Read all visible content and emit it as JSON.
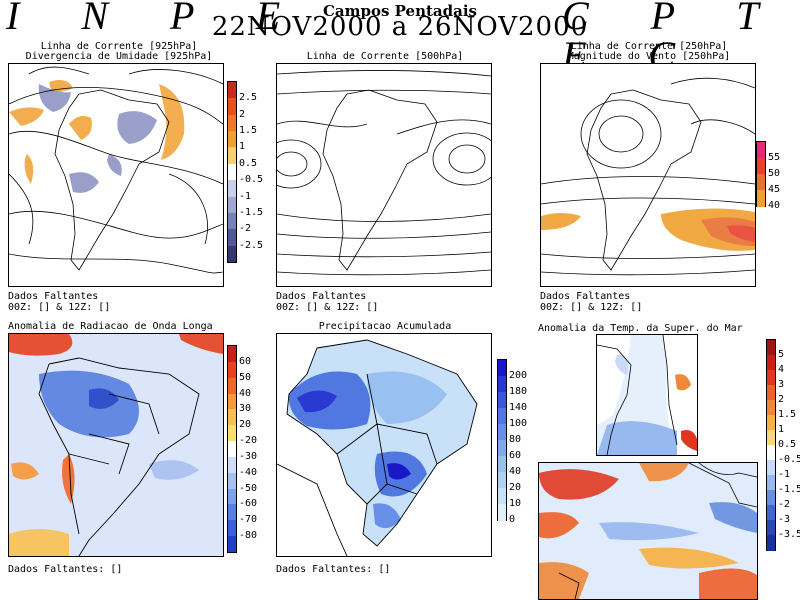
{
  "header": {
    "left_logo": "I N P E",
    "right_logo": "C P T E C",
    "title": "Campos Pentadais",
    "period": "22NOV2000 a 26NOV2000"
  },
  "panels": {
    "p1": {
      "title1": "Linha de Corrente [925hPa]",
      "title2": "Divergencia de Umidade [925hPa]",
      "missing": "Dados Faltantes",
      "missing_times": "00Z: [] & 12Z: []"
    },
    "p2": {
      "title1": "Linha de Corrente [500hPa]",
      "missing": "Dados Faltantes",
      "missing_times": "00Z: [] & 12Z: []"
    },
    "p3": {
      "title1": "Linha de Corrente [250hPa]",
      "title2": "Magnitude do Vento [250hPa]",
      "missing": "Dados Faltantes",
      "missing_times": "00Z: [] & 12Z: []"
    },
    "p4": {
      "title1": "Anomalia de Radiacao de Onda Longa",
      "missing": "Dados Faltantes: []"
    },
    "p5": {
      "title1": "Precipitacao Acumulada",
      "missing": "Dados Faltantes: []"
    },
    "p6": {
      "title1": "Anomalia da Temp. da Super. do Mar"
    }
  },
  "colorbars": {
    "div": {
      "labels": [
        "2.5",
        "2",
        "1.5",
        "1",
        "0.5",
        "-0.5",
        "-1",
        "-1.5",
        "-2",
        "-2.5"
      ],
      "colors": [
        "#c8281e",
        "#e8501e",
        "#f07828",
        "#f0a030",
        "#f8d070",
        "#ffffff",
        "#c8d0e8",
        "#a0a8d0",
        "#7880b8",
        "#505898",
        "#383870"
      ]
    },
    "wind": {
      "labels": [
        "55",
        "50",
        "45",
        "40"
      ],
      "colors": [
        "#e82878",
        "#e84030",
        "#e87030",
        "#f0a030"
      ]
    },
    "olr": {
      "labels": [
        "60",
        "50",
        "40",
        "30",
        "20",
        "-20",
        "-30",
        "-40",
        "-50",
        "-60",
        "-70",
        "-80"
      ],
      "colors": [
        "#c81e1e",
        "#e84020",
        "#f06828",
        "#f89838",
        "#f8c050",
        "#f8e070",
        "#ffffff",
        "#d0dcf8",
        "#a8c0f0",
        "#80a0e8",
        "#5880e0",
        "#3860d8",
        "#2040c8"
      ]
    },
    "prec": {
      "labels": [
        "200",
        "180",
        "140",
        "100",
        "80",
        "60",
        "40",
        "20",
        "10",
        "0"
      ],
      "colors": [
        "#1818c8",
        "#2838d0",
        "#3858d8",
        "#5078e0",
        "#6890e8",
        "#80a8f0",
        "#98c0f0",
        "#b0d0f0",
        "#c8e0f8",
        "#e0eef8"
      ]
    },
    "sst": {
      "labels": [
        "5",
        "4",
        "3",
        "2",
        "1.5",
        "1",
        "0.5",
        "-0.5",
        "-1",
        "-1.5",
        "-2",
        "-3",
        "-3.5"
      ],
      "colors": [
        "#a01414",
        "#c82018",
        "#e03820",
        "#f06028",
        "#f08838",
        "#f8b040",
        "#f8d878",
        "#ffffff",
        "#c8daf8",
        "#98b8f0",
        "#6890e0",
        "#4068d0",
        "#2848b8",
        "#1830a0"
      ]
    }
  }
}
